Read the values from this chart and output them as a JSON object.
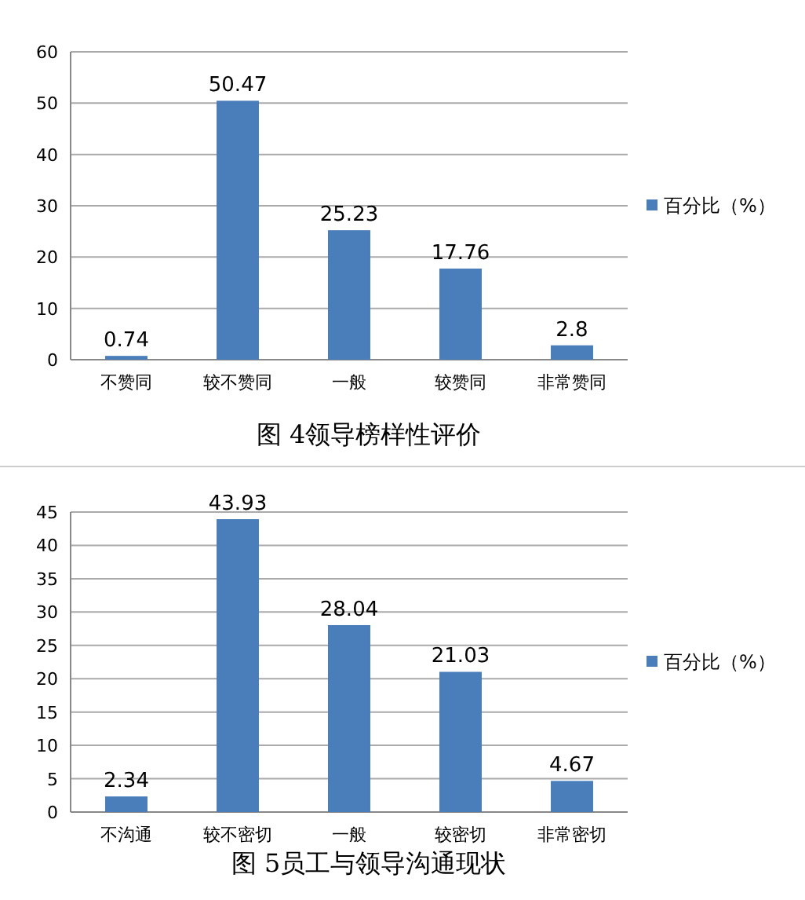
{
  "chart_data": [
    {
      "type": "bar",
      "title": "图 4领导榜样性评价",
      "categories": [
        "不赞同",
        "较不赞同",
        "一般",
        "较赞同",
        "非常赞同"
      ],
      "series": [
        {
          "name": "百分比（%）",
          "color": "#4a7ebb",
          "values": [
            0.74,
            50.47,
            25.23,
            17.76,
            2.8
          ]
        }
      ],
      "ylim": [
        0,
        60
      ],
      "yticks": [
        0,
        10,
        20,
        30,
        40,
        50,
        60
      ],
      "grid": "y",
      "legend": "right",
      "data_labels": true
    },
    {
      "type": "bar",
      "title": "图 5员工与领导沟通现状",
      "categories": [
        "不沟通",
        "较不密切",
        "一般",
        "较密切",
        "非常密切"
      ],
      "series": [
        {
          "name": "百分比（%）",
          "color": "#4a7ebb",
          "values": [
            2.34,
            43.93,
            28.04,
            21.03,
            4.67
          ]
        }
      ],
      "ylim": [
        0,
        45
      ],
      "yticks": [
        0,
        5,
        10,
        15,
        20,
        25,
        30,
        35,
        40,
        45
      ],
      "grid": "y",
      "legend": "right",
      "data_labels": true
    }
  ]
}
